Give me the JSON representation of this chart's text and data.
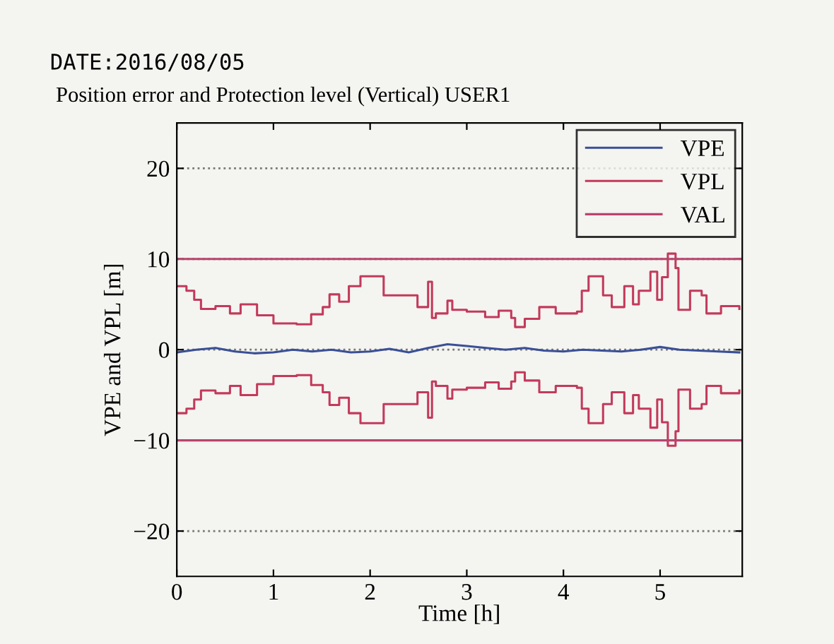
{
  "chart_data": {
    "type": "line",
    "title": "Position error and Protection level (Vertical) USER1",
    "annotations": [
      "DATE:2016/08/05"
    ],
    "xlabel": "Time [h]",
    "ylabel": "VPE and VPL [m]",
    "xlim": [
      0,
      5.85
    ],
    "xticks": [
      0,
      1,
      2,
      3,
      4,
      5
    ],
    "ylim": [
      -25,
      25
    ],
    "yticks": [
      -20,
      -10,
      0,
      10,
      20
    ],
    "grid": "y",
    "legend": "top right",
    "line_style": "solid",
    "marker": "none",
    "series": [
      {
        "name": "VPE",
        "color": "#3a4f96",
        "x": [
          0,
          0.2,
          0.4,
          0.6,
          0.8,
          1.0,
          1.2,
          1.4,
          1.6,
          1.8,
          2.0,
          2.2,
          2.4,
          2.6,
          2.8,
          3.0,
          3.2,
          3.4,
          3.6,
          3.8,
          4.0,
          4.2,
          4.4,
          4.6,
          4.8,
          5.0,
          5.2,
          5.4,
          5.6,
          5.82
        ],
        "values": [
          -0.3,
          0,
          0.2,
          -0.2,
          -0.4,
          -0.3,
          0,
          -0.2,
          0,
          -0.3,
          -0.2,
          0.1,
          -0.3,
          0.2,
          0.6,
          0.4,
          0.2,
          0,
          0.2,
          -0.1,
          -0.2,
          0,
          -0.1,
          -0.2,
          0,
          0.3,
          0,
          -0.1,
          -0.2,
          -0.3
        ]
      },
      {
        "name": "VPL",
        "color": "#c23a5a",
        "type": "step",
        "x": [
          0,
          0.1,
          0.18,
          0.25,
          0.4,
          0.55,
          0.66,
          0.83,
          1.0,
          1.24,
          1.39,
          1.51,
          1.58,
          1.68,
          1.78,
          1.9,
          2.14,
          2.41,
          2.49,
          2.6,
          2.64,
          2.68,
          2.8,
          2.85,
          3.0,
          3.19,
          3.33,
          3.46,
          3.5,
          3.6,
          3.75,
          3.92,
          4.14,
          4.19,
          4.26,
          4.41,
          4.5,
          4.63,
          4.72,
          4.78,
          4.9,
          4.97,
          5.02,
          5.08,
          5.16,
          5.19,
          5.31,
          5.43,
          5.48,
          5.63,
          5.82
        ],
        "values": [
          7.0,
          6.5,
          5.5,
          4.5,
          4.8,
          4.0,
          5.0,
          3.8,
          2.9,
          2.8,
          3.9,
          4.7,
          6.1,
          5.3,
          7.0,
          8.1,
          6.0,
          6.0,
          4.7,
          7.5,
          3.5,
          4.0,
          5.4,
          4.4,
          4.2,
          3.6,
          4.3,
          3.5,
          2.5,
          3.4,
          4.7,
          4.0,
          4.2,
          6.5,
          8.1,
          6.0,
          4.7,
          7.0,
          5.0,
          6.5,
          8.6,
          5.5,
          8.0,
          10.6,
          9.0,
          4.4,
          6.5,
          6.0,
          4.0,
          4.8,
          4.5
        ]
      },
      {
        "color": "#c23a5a",
        "type": "step",
        "x": [
          0,
          0.1,
          0.18,
          0.25,
          0.4,
          0.55,
          0.66,
          0.83,
          1.0,
          1.24,
          1.39,
          1.51,
          1.58,
          1.68,
          1.78,
          1.9,
          2.14,
          2.41,
          2.49,
          2.6,
          2.64,
          2.68,
          2.8,
          2.85,
          3.0,
          3.19,
          3.33,
          3.46,
          3.5,
          3.6,
          3.75,
          3.92,
          4.14,
          4.19,
          4.26,
          4.41,
          4.5,
          4.63,
          4.72,
          4.78,
          4.9,
          4.97,
          5.02,
          5.08,
          5.16,
          5.19,
          5.31,
          5.43,
          5.48,
          5.63,
          5.82
        ],
        "values": [
          -7.0,
          -6.5,
          -5.5,
          -4.5,
          -4.8,
          -4.0,
          -5.0,
          -3.8,
          -2.9,
          -2.8,
          -3.9,
          -4.7,
          -6.1,
          -5.3,
          -7.0,
          -8.1,
          -6.0,
          -6.0,
          -4.7,
          -7.5,
          -3.5,
          -4.0,
          -5.4,
          -4.4,
          -4.2,
          -3.6,
          -4.3,
          -3.5,
          -2.5,
          -3.4,
          -4.7,
          -4.0,
          -4.2,
          -6.5,
          -8.1,
          -6.0,
          -4.7,
          -7.0,
          -5.0,
          -6.5,
          -8.6,
          -5.5,
          -8.0,
          -10.6,
          -9.0,
          -4.4,
          -6.5,
          -6.0,
          -4.0,
          -4.8,
          -4.5
        ]
      },
      {
        "name": "VAL",
        "color": "#b8446e",
        "x": [
          0,
          5.85
        ],
        "values": [
          10,
          10
        ]
      },
      {
        "color": "#b8446e",
        "x": [
          0,
          5.85
        ],
        "values": [
          -10,
          -10
        ]
      }
    ]
  }
}
